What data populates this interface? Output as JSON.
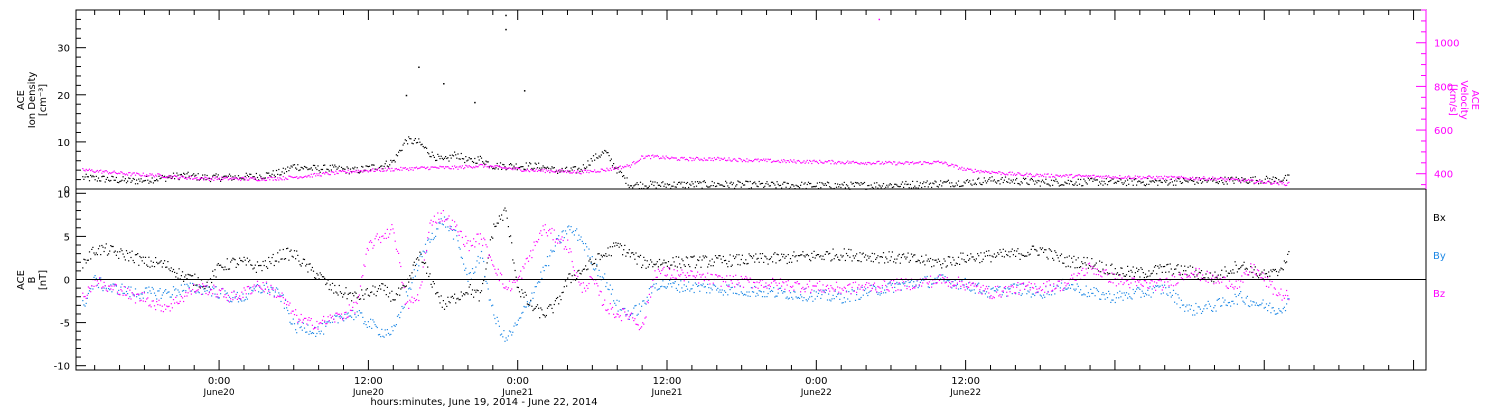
{
  "colors": {
    "density": "#000000",
    "velocity": "#ff00ff",
    "bx": "#000000",
    "by": "#1e88e5",
    "bz": "#ff00ff",
    "axis": "#000000"
  },
  "chart_data": [
    {
      "type": "scatter",
      "panel": "top",
      "left_axis_label": [
        "ACE",
        "Ion Density",
        "[cm⁻³]"
      ],
      "right_axis_label": [
        "ACE",
        "Velocity",
        "[km/s]"
      ],
      "left_ylim": [
        0,
        38
      ],
      "right_ylim": [
        330,
        1150
      ],
      "left_ticks": [
        "0",
        "10",
        "20",
        "30"
      ],
      "left_tick_values": [
        0,
        10,
        20,
        30
      ],
      "right_ticks": [
        "400",
        "600",
        "800",
        "1000"
      ],
      "right_tick_values": [
        400,
        600,
        800,
        1000
      ],
      "xlim_hours": [
        -11.5,
        97
      ],
      "series": [
        {
          "key": "density",
          "axis": "left",
          "x_hours": [
            -11,
            -9,
            -7,
            -5,
            -3,
            -1,
            1,
            3,
            5,
            6,
            7,
            8,
            9,
            10,
            11,
            12,
            13,
            14,
            15,
            16,
            17,
            18,
            19,
            20,
            21,
            22,
            23,
            24,
            25,
            26,
            27,
            28,
            29,
            30,
            31,
            32,
            33,
            34,
            35,
            36,
            40,
            45,
            50,
            55,
            60,
            62,
            64,
            66,
            70,
            75,
            80,
            85,
            86
          ],
          "values": [
            2.5,
            2.2,
            1.8,
            2.3,
            3.0,
            2.5,
            2.6,
            2.8,
            3.6,
            5.0,
            4.5,
            4.4,
            4.5,
            4.2,
            4.0,
            4.6,
            5.0,
            6.0,
            10.5,
            10.0,
            7.5,
            6.0,
            7.5,
            6.0,
            6.5,
            5.0,
            5.0,
            5.0,
            5.0,
            4.8,
            4.0,
            4.0,
            4.2,
            6.5,
            8.0,
            4.0,
            1.0,
            1.0,
            1.0,
            1.0,
            1.1,
            0.9,
            0.8,
            1.0,
            1.5,
            2.0,
            1.8,
            1.5,
            1.6,
            1.6,
            1.9,
            2.1,
            2.4
          ]
        },
        {
          "key": "velocity",
          "axis": "right",
          "x_hours": [
            -11,
            -9,
            -7,
            -5,
            -3,
            -1,
            1,
            3,
            5,
            7,
            9,
            11,
            13,
            15,
            17,
            19,
            21,
            23,
            25,
            27,
            29,
            31,
            33,
            34,
            35,
            37,
            40,
            45,
            50,
            55,
            58,
            60,
            62,
            64,
            66,
            70,
            75,
            80,
            85,
            86
          ],
          "values": [
            420,
            410,
            400,
            395,
            385,
            380,
            380,
            378,
            382,
            392,
            405,
            415,
            420,
            425,
            430,
            430,
            440,
            428,
            418,
            415,
            410,
            420,
            440,
            480,
            480,
            470,
            470,
            460,
            455,
            450,
            455,
            420,
            410,
            400,
            395,
            390,
            385,
            380,
            360,
            355
          ]
        }
      ],
      "outliers_density": [
        [
          23,
          37
        ],
        [
          23,
          34
        ],
        [
          16,
          26
        ],
        [
          18,
          22.5
        ],
        [
          15,
          20
        ],
        [
          20.5,
          18.5
        ],
        [
          24.5,
          21
        ]
      ],
      "outliers_velocity": [
        [
          53,
          1110
        ]
      ]
    },
    {
      "type": "scatter",
      "panel": "bottom",
      "left_axis_label": [
        "ACE",
        "B",
        "[nT]"
      ],
      "ylim": [
        -10.5,
        10.5
      ],
      "ticks": [
        "-10",
        "-5",
        "0",
        "5",
        "10"
      ],
      "tick_values": [
        -10,
        -5,
        0,
        5,
        10
      ],
      "xlim_hours": [
        -11.5,
        97
      ],
      "zero_line": true,
      "legend": [
        "Bx",
        "By",
        "Bz"
      ],
      "legend_position": "right",
      "series": [
        {
          "key": "bx",
          "name": "Bx",
          "x_hours": [
            -11,
            -10,
            -9,
            -8,
            -7,
            -6,
            -5,
            -4,
            -3,
            -2,
            -1,
            0,
            1,
            2,
            3,
            4,
            5,
            6,
            7,
            8,
            9,
            10,
            11,
            12,
            13,
            14,
            15,
            16,
            17,
            18,
            19,
            20,
            21,
            22,
            23,
            24,
            25,
            26,
            27,
            28,
            29,
            30,
            31,
            32,
            33,
            34,
            35,
            40,
            45,
            50,
            55,
            58,
            60,
            62,
            64,
            66,
            68,
            70,
            72,
            74,
            76,
            78,
            80,
            82,
            83,
            84,
            85,
            86
          ],
          "values": [
            2,
            3.5,
            3.5,
            3.0,
            2.8,
            2.0,
            2.0,
            1.5,
            0.5,
            0,
            -0.5,
            1.5,
            2.0,
            2.0,
            1.5,
            2.0,
            3.0,
            3.0,
            1.5,
            0.5,
            -1,
            -1.5,
            -2,
            -1.5,
            -1,
            -2,
            -1,
            3,
            0,
            -3,
            -2,
            -1,
            -2,
            6,
            8,
            -1,
            -3,
            -4,
            -3,
            0,
            1,
            2,
            3,
            4,
            3,
            2,
            2,
            2.2,
            2.5,
            3.0,
            2.5,
            2.0,
            2.6,
            2.8,
            3.0,
            3.5,
            2.2,
            2.0,
            1.0,
            0.8,
            1.3,
            1.0,
            0.3,
            1.8,
            1.0,
            0.5,
            0.8,
            3.0
          ]
        },
        {
          "key": "by",
          "name": "By",
          "x_hours": [
            -11,
            -10,
            -9,
            -8,
            -7,
            -6,
            -5,
            -4,
            -3,
            -2,
            -1,
            0,
            1,
            2,
            3,
            4,
            5,
            6,
            7,
            8,
            9,
            10,
            11,
            12,
            13,
            14,
            15,
            16,
            17,
            18,
            19,
            20,
            21,
            22,
            23,
            24,
            25,
            26,
            27,
            28,
            29,
            30,
            31,
            32,
            33,
            34,
            35,
            40,
            45,
            50,
            55,
            58,
            60,
            62,
            64,
            66,
            68,
            70,
            72,
            74,
            76,
            78,
            80,
            82,
            83,
            84,
            85,
            86
          ],
          "values": [
            -3,
            0,
            -1,
            -1,
            -1.5,
            -1.5,
            -1.5,
            -1.5,
            -1,
            -1,
            -1,
            -1.5,
            -2,
            -2,
            -1,
            -1,
            -2,
            -5.5,
            -5.5,
            -6,
            -5,
            -4,
            -4,
            -5,
            -6,
            -6,
            -2,
            2,
            5,
            7,
            5,
            0,
            3,
            -4,
            -7,
            -5,
            -2,
            1,
            4,
            6,
            5,
            2,
            0,
            -3,
            -4,
            -3,
            -0.5,
            -1,
            -1.5,
            -2,
            -0.5,
            0,
            -0.5,
            -1.5,
            -1,
            -1.5,
            -0.5,
            -1.5,
            -2,
            -1.5,
            -1,
            -3.5,
            -3,
            -2,
            -2.5,
            -3,
            -3.5,
            -2.5
          ]
        },
        {
          "key": "bz",
          "name": "Bz",
          "x_hours": [
            -11,
            -10,
            -9,
            -8,
            -7,
            -6,
            -5,
            -4,
            -3,
            -2,
            -1,
            0,
            1,
            2,
            3,
            4,
            5,
            6,
            7,
            8,
            9,
            10,
            11,
            12,
            13,
            14,
            15,
            16,
            17,
            18,
            19,
            20,
            21,
            22,
            23,
            24,
            25,
            26,
            27,
            28,
            29,
            30,
            31,
            32,
            33,
            34,
            35,
            40,
            45,
            50,
            55,
            58,
            60,
            62,
            64,
            66,
            68,
            70,
            72,
            74,
            76,
            78,
            80,
            82,
            83,
            84,
            85,
            86
          ],
          "values": [
            -2,
            0,
            -1,
            -1,
            -2,
            -2,
            -3,
            -3,
            -2,
            -1,
            -1,
            -1.5,
            -2,
            -1.5,
            -0.5,
            -1,
            -2,
            -4,
            -5,
            -5,
            -4.5,
            -4,
            -3,
            4,
            5,
            6,
            -3,
            -2,
            7,
            7.5,
            6,
            4,
            5,
            2,
            -1,
            0,
            3,
            6,
            5,
            4,
            -1,
            0,
            -3,
            -4,
            -4,
            -5.5,
            1,
            0,
            -0.5,
            -1,
            -0.5,
            0,
            -0.5,
            -1.5,
            -1,
            -0.8,
            -0.5,
            1.5,
            0,
            -0.5,
            -0.5,
            1.0,
            0,
            -0.5,
            1.5,
            0,
            -1.5,
            -2
          ]
        }
      ]
    }
  ],
  "x_axis": {
    "tick_labels": [
      {
        "time": "0:00",
        "date": "June20"
      },
      {
        "time": "12:00",
        "date": "June20"
      },
      {
        "time": "0:00",
        "date": "June21"
      },
      {
        "time": "12:00",
        "date": "June21"
      },
      {
        "time": "0:00",
        "date": "June22"
      },
      {
        "time": "12:00",
        "date": "June22"
      }
    ],
    "tick_hours": [
      0,
      12,
      24,
      36,
      48,
      60
    ],
    "title": "hours:minutes, June 19, 2014 - June 22, 2014"
  }
}
